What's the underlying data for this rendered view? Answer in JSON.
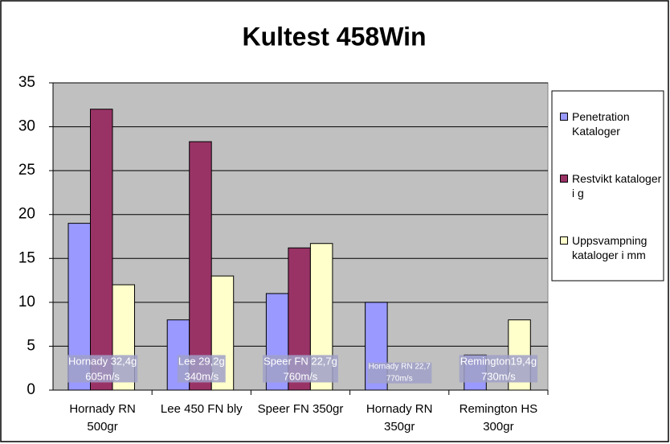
{
  "chart_data": {
    "type": "bar",
    "title": "Kultest 458Win",
    "categories": [
      "Hornady RN 500gr",
      "Lee 450 FN bly",
      "Speer FN 350gr",
      "Hornady RN 350gr",
      "Remington HS 300gr"
    ],
    "series": [
      {
        "name": "Penetration Kataloger",
        "color": "#9999ff",
        "values": [
          19,
          8,
          11,
          10,
          4
        ]
      },
      {
        "name": "Restvikt kataloger i g",
        "color": "#993366",
        "values": [
          32,
          28.3,
          16.2,
          null,
          null
        ]
      },
      {
        "name": "Uppsvampning kataloger i mm",
        "color": "#ffffcc",
        "values": [
          12,
          13,
          16.7,
          null,
          8
        ]
      }
    ],
    "annotations": [
      [
        "Hornady 32,4g",
        "605m/s"
      ],
      [
        "Lee 29,2g",
        "340m/s"
      ],
      [
        "Speer FN 22,7g",
        "760m/s"
      ],
      [
        "Hornady RN 22,7",
        "770m/s"
      ],
      [
        "Remington19,4g",
        "730m/s"
      ]
    ],
    "ylim": [
      0,
      35
    ],
    "yticks": [
      0,
      5,
      10,
      15,
      20,
      25,
      30,
      35
    ],
    "grid": true,
    "plot_background": "#c0c0c0"
  }
}
